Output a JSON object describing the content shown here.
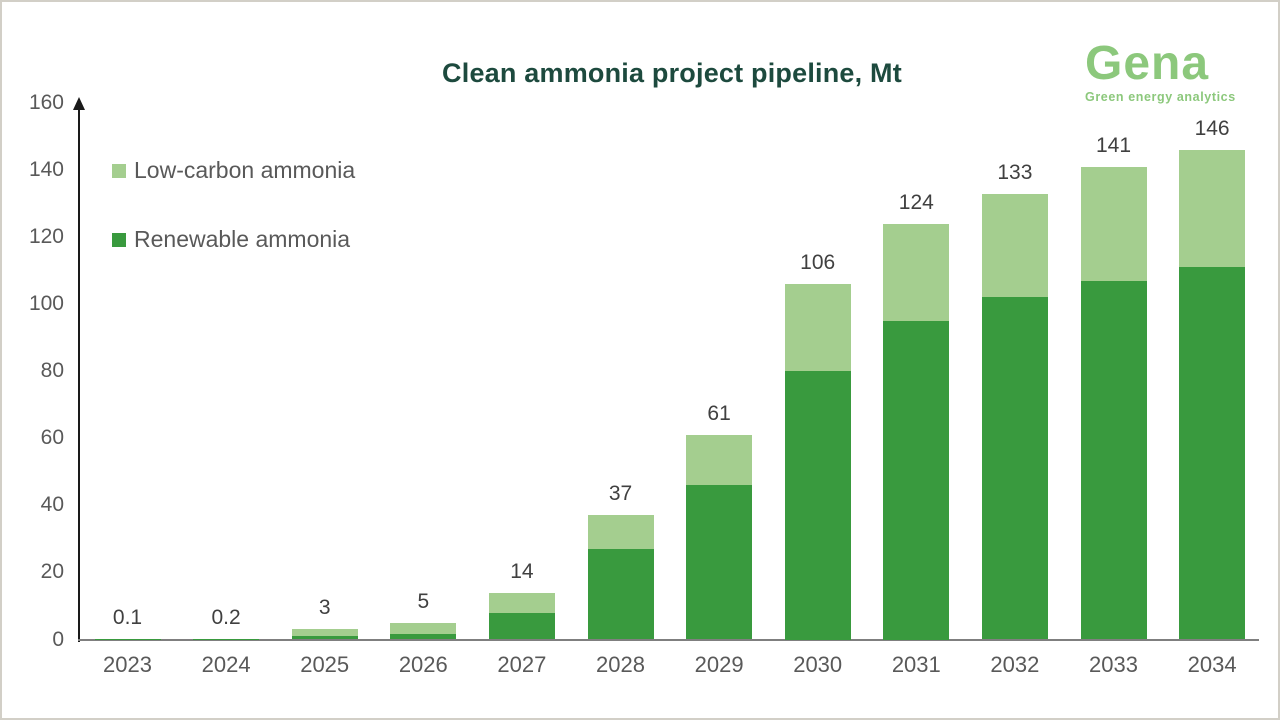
{
  "header": {
    "title": "Clean ammonia project pipeline, Mt"
  },
  "logo": {
    "name": "Gena",
    "tagline": "Green energy analytics",
    "color": "#8cc87c"
  },
  "legend": {
    "items": [
      {
        "label": "Low-carbon ammonia",
        "color": "#a4ce8f"
      },
      {
        "label": "Renewable ammonia",
        "color": "#399a3e"
      }
    ]
  },
  "colors": {
    "title": "#1d4a3e",
    "renewable": "#399a3e",
    "low_carbon": "#a4ce8f",
    "axis_text": "#595959",
    "value_text": "#404040"
  },
  "chart_data": {
    "type": "bar",
    "stacked": true,
    "title": "Clean ammonia project pipeline, Mt",
    "unit": "Mt",
    "categories": [
      "2023",
      "2024",
      "2025",
      "2026",
      "2027",
      "2028",
      "2029",
      "2030",
      "2031",
      "2032",
      "2033",
      "2034"
    ],
    "series": [
      {
        "name": "Renewable ammonia",
        "color": "#399a3e",
        "values": [
          0.1,
          0.2,
          1,
          1.5,
          8,
          27,
          46,
          80,
          95,
          102,
          107,
          111
        ]
      },
      {
        "name": "Low-carbon ammonia",
        "color": "#a4ce8f",
        "values": [
          0,
          0,
          2,
          3.5,
          6,
          10,
          15,
          26,
          29,
          31,
          34,
          35
        ]
      }
    ],
    "totals": [
      0.1,
      0.2,
      3,
      5,
      14,
      37,
      61,
      106,
      124,
      133,
      141,
      146
    ],
    "total_labels": [
      "0.1",
      "0.2",
      "3",
      "5",
      "14",
      "37",
      "61",
      "106",
      "124",
      "133",
      "141",
      "146"
    ],
    "xlabel": "",
    "ylabel": "",
    "ylim": [
      0,
      160
    ],
    "yticks": [
      0,
      20,
      40,
      60,
      80,
      100,
      120,
      140,
      160
    ],
    "grid": false,
    "legend_position": "upper-left"
  }
}
